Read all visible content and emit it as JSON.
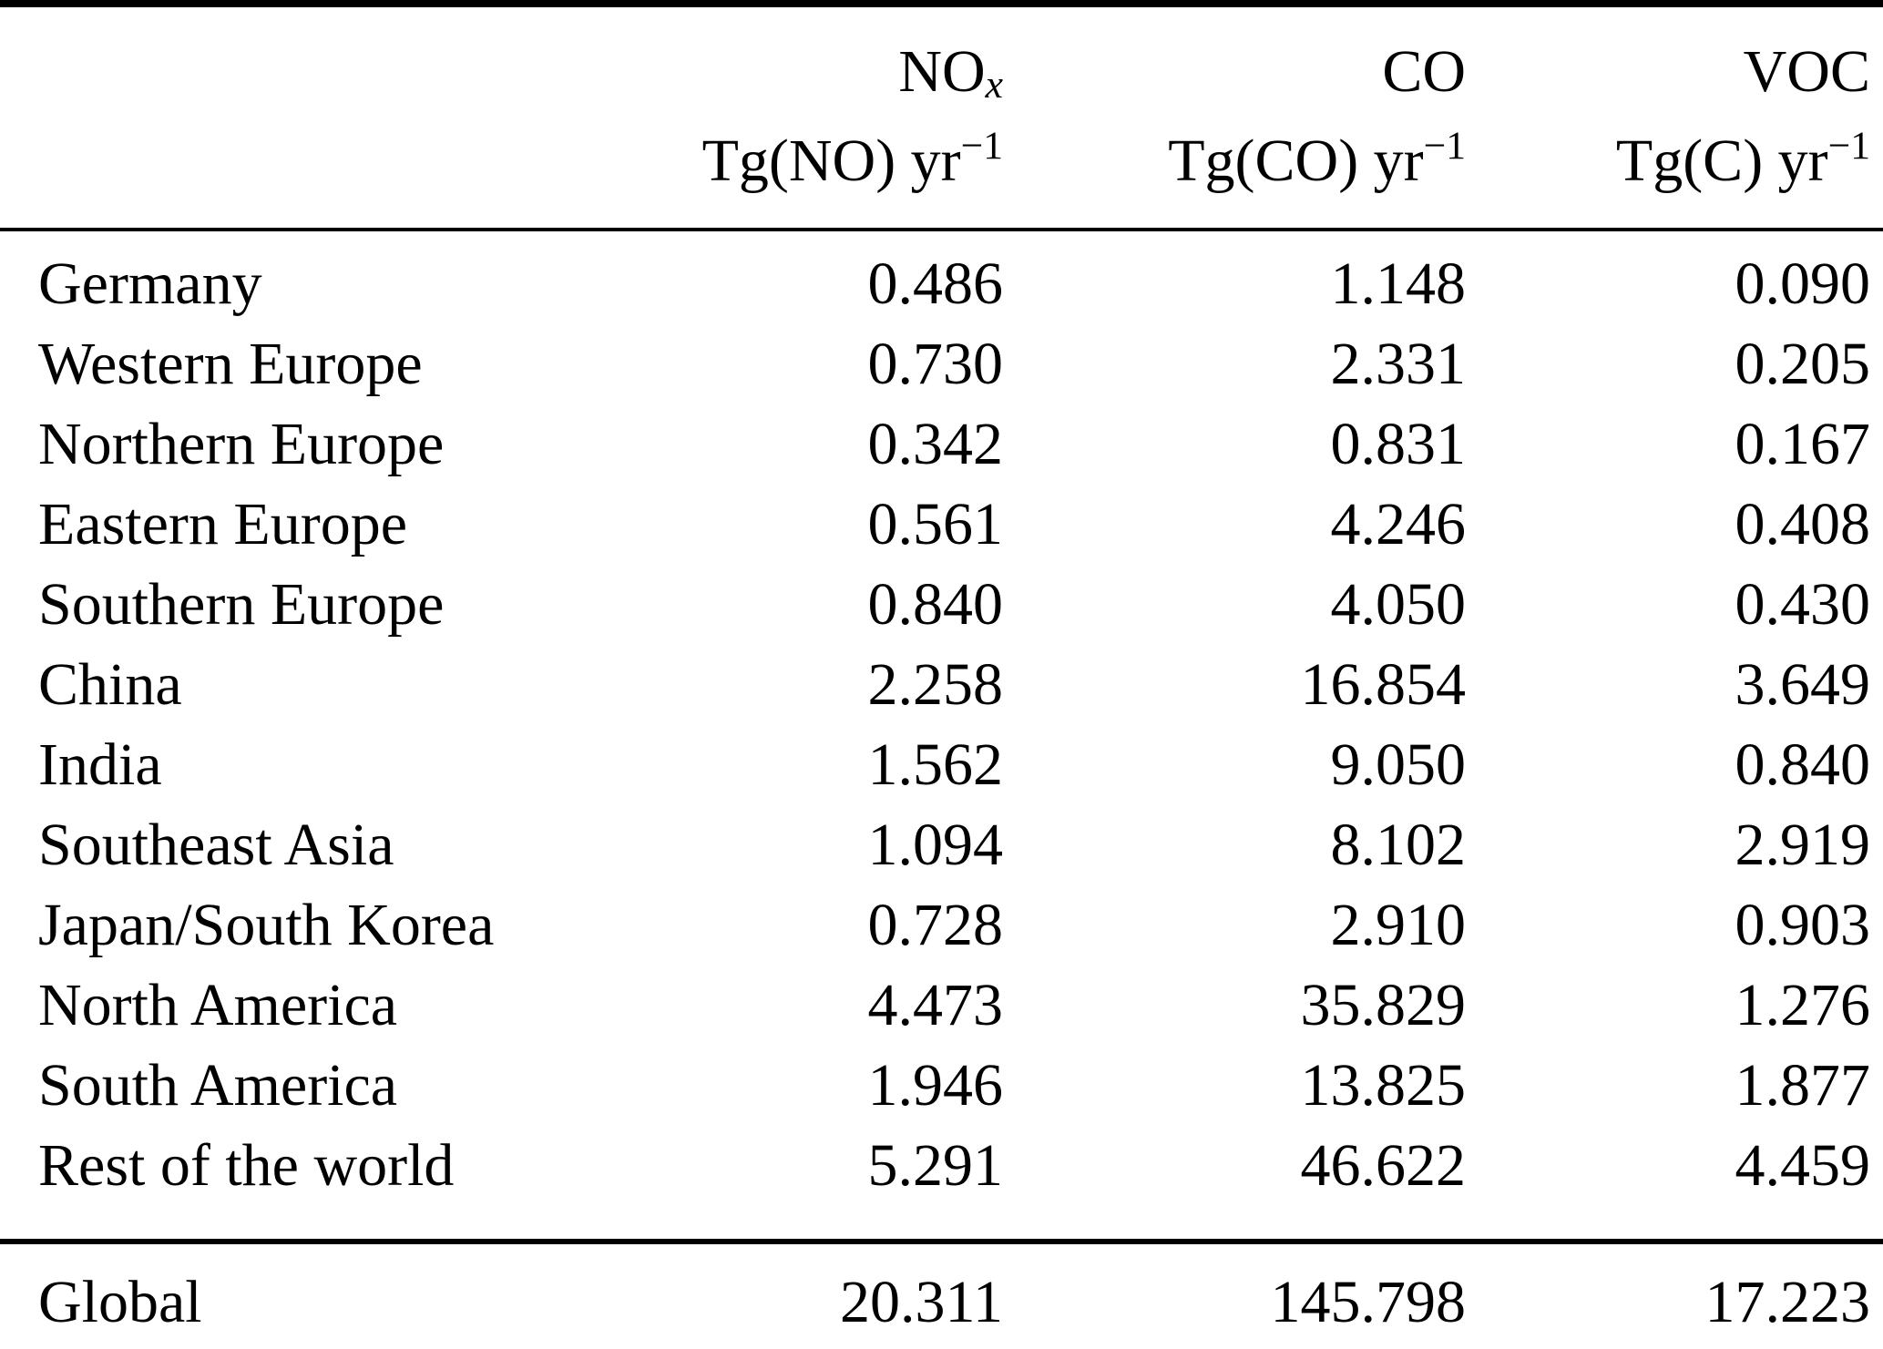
{
  "table": {
    "columns": {
      "nox": {
        "name": "NO",
        "name_sub": "x",
        "unit": "Tg(NO) yr",
        "unit_sup": "−1"
      },
      "co": {
        "name": "CO",
        "unit": "Tg(CO) yr",
        "unit_sup": "−1"
      },
      "voc": {
        "name": "VOC",
        "unit": "Tg(C) yr",
        "unit_sup": "−1"
      }
    },
    "rows": [
      {
        "region": "Germany",
        "nox": "0.486",
        "co": "1.148",
        "voc": "0.090"
      },
      {
        "region": "Western Europe",
        "nox": "0.730",
        "co": "2.331",
        "voc": "0.205"
      },
      {
        "region": "Northern Europe",
        "nox": "0.342",
        "co": "0.831",
        "voc": "0.167"
      },
      {
        "region": "Eastern Europe",
        "nox": "0.561",
        "co": "4.246",
        "voc": "0.408"
      },
      {
        "region": "Southern Europe",
        "nox": "0.840",
        "co": "4.050",
        "voc": "0.430"
      },
      {
        "region": "China",
        "nox": "2.258",
        "co": "16.854",
        "voc": "3.649"
      },
      {
        "region": "India",
        "nox": "1.562",
        "co": "9.050",
        "voc": "0.840"
      },
      {
        "region": "Southeast Asia",
        "nox": "1.094",
        "co": "8.102",
        "voc": "2.919"
      },
      {
        "region": "Japan/South Korea",
        "nox": "0.728",
        "co": "2.910",
        "voc": "0.903"
      },
      {
        "region": "North America",
        "nox": "4.473",
        "co": "35.829",
        "voc": "1.276"
      },
      {
        "region": "South America",
        "nox": "1.946",
        "co": "13.825",
        "voc": "1.877"
      },
      {
        "region": "Rest of the world",
        "nox": "5.291",
        "co": "46.622",
        "voc": "4.459"
      }
    ],
    "footer": {
      "region": "Global",
      "nox": "20.311",
      "co": "145.798",
      "voc": "17.223"
    }
  }
}
